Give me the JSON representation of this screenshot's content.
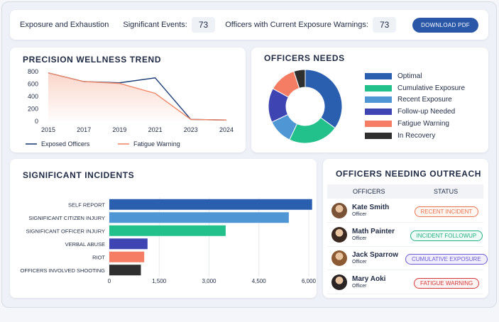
{
  "header": {
    "title": "Exposure and Exhaustion",
    "significant_events_label": "Significant Events:",
    "significant_events_value": "73",
    "warnings_label": "Officers with Current Exposure Warnings:",
    "warnings_value": "73",
    "download_label": "DOWNLOAD PDF"
  },
  "wellness": {
    "title": "PRECISION WELLNESS TREND",
    "legend": [
      "Exposed Officers",
      "Fatigue Warning"
    ]
  },
  "needs": {
    "title": "OFFICERS NEEDS",
    "legend": [
      {
        "label": "Optimal",
        "color": "#2a5fb0"
      },
      {
        "label": "Cumulative Exposure",
        "color": "#22c08a"
      },
      {
        "label": "Recent Exposure",
        "color": "#4f97d4"
      },
      {
        "label": "Follow-up Needed",
        "color": "#3e45b2"
      },
      {
        "label": "Fatigue Warning",
        "color": "#f47d63"
      },
      {
        "label": "In Recovery",
        "color": "#2f2f2f"
      }
    ]
  },
  "incidents": {
    "title": "SIGNIFICANT INCIDENTS"
  },
  "outreach": {
    "title": "OFFICERS NEEDING OUTREACH",
    "col_officers": "OFFICERS",
    "col_status": "STATUS",
    "rows": [
      {
        "name": "Kate Smith",
        "role": "Officer",
        "status": "RECENT INCIDENT",
        "color": "#e9734f",
        "bg": "#fff5f1",
        "avatar": "#7a5236"
      },
      {
        "name": "Math Painter",
        "role": "Officer",
        "status": "INCIDENT FOLLOWUP",
        "color": "#22b07e",
        "bg": "#effbf6",
        "avatar": "#3a2a22"
      },
      {
        "name": "Jack Sparrow",
        "role": "Officer",
        "status": "CUMULATIVE EXPOSURE",
        "color": "#6a5bd0",
        "bg": "#f1efff",
        "avatar": "#8c5b34"
      },
      {
        "name": "Mary Aoki",
        "role": "Officer",
        "status": "FATIGUE WARNING",
        "color": "#d23a3a",
        "bg": "#fff3f3",
        "avatar": "#2a2424"
      }
    ]
  },
  "chart_data": [
    {
      "type": "line",
      "title": "PRECISION WELLNESS TREND",
      "x_ticks": [
        "2015",
        "2017",
        "2019",
        "2021",
        "2023",
        "2024"
      ],
      "ylim": [
        0,
        800
      ],
      "y_ticks": [
        0,
        200,
        400,
        600,
        800
      ],
      "series": [
        {
          "name": "Exposed Officers",
          "color": "#1f3f7a",
          "values": [
            780,
            640,
            620,
            700,
            30,
            20
          ]
        },
        {
          "name": "Fatigue Warning",
          "color": "#f08a6a",
          "values": [
            780,
            640,
            610,
            450,
            30,
            20
          ]
        }
      ],
      "legend_position": "bottom"
    },
    {
      "type": "pie",
      "title": "OFFICERS NEEDS",
      "categories": [
        "Optimal",
        "Cumulative Exposure",
        "Recent Exposure",
        "Follow-up Needed",
        "Fatigue Warning",
        "In Recovery"
      ],
      "values": [
        35,
        22,
        11,
        15,
        12,
        5
      ]
    },
    {
      "type": "bar",
      "title": "SIGNIFICANT INCIDENTS",
      "categories": [
        "SELF REPORT",
        "SIGNIFICANT CITIZEN INJURY",
        "SIGNIFICANT OFFICER INJURY",
        "VERBAL ABUSE",
        "RIOT",
        "OFFICERS INVOLVED SHOOTING"
      ],
      "values": [
        6100,
        5400,
        3500,
        1150,
        1050,
        950
      ],
      "colors": [
        "#2a5fb0",
        "#4f97d4",
        "#22c08a",
        "#3e45b2",
        "#f47d63",
        "#2f2f2f"
      ],
      "x_ticks": [
        0,
        1500,
        3000,
        4500,
        6000
      ],
      "x_tick_labels": [
        "0",
        "1,500",
        "3,000",
        "4,500",
        "6,000"
      ],
      "xlim": [
        0,
        6000
      ]
    }
  ]
}
